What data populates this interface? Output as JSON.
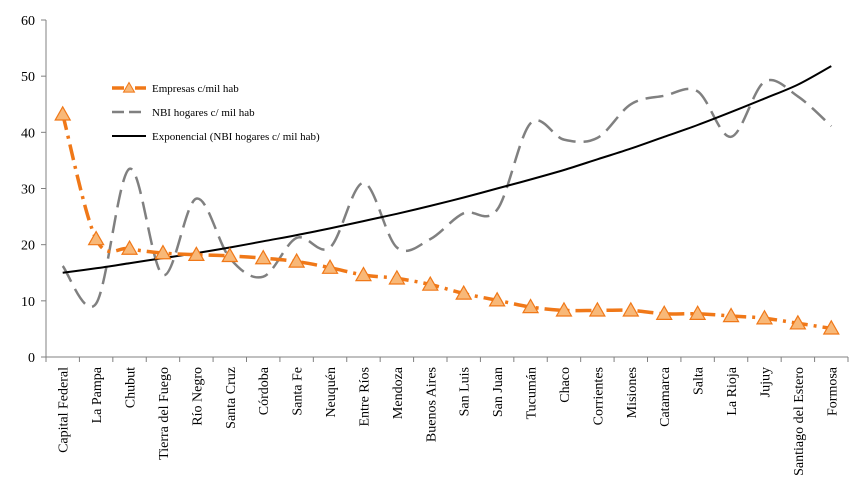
{
  "chart_data": {
    "type": "line",
    "categories": [
      "Capital Federal",
      "La Pampa",
      "Chubut",
      "Tierra del Fuego",
      "Río Negro",
      "Santa Cruz",
      "Córdoba",
      "Santa Fe",
      "Neuquén",
      "Entre Ríos",
      "Mendoza",
      "Buenos Aires",
      "San Luis",
      "San Juan",
      "Tucumán",
      "Chaco",
      "Corrientes",
      "Misiones",
      "Catamarca",
      "Salta",
      "La Rioja",
      "Jujuy",
      "Santiago del Estero",
      "Formosa"
    ],
    "ylim": [
      0,
      60
    ],
    "yticks": [
      0,
      10,
      20,
      30,
      40,
      50,
      60
    ],
    "grid": false,
    "legend_position": "top-left",
    "series": [
      {
        "name": "Empresas c/mil hab",
        "color": "#f07818",
        "marker_fill": "#f8b878",
        "style": "dash-dot",
        "marker": "triangle",
        "values": [
          43.2,
          21.0,
          19.3,
          18.5,
          18.2,
          18.0,
          17.6,
          17.0,
          15.9,
          14.6,
          14.0,
          12.9,
          11.3,
          10.1,
          8.9,
          8.3,
          8.3,
          8.3,
          7.7,
          7.7,
          7.3,
          6.9,
          6.0,
          5.1
        ]
      },
      {
        "name": "NBI hogares  c/ mil hab",
        "color": "#808080",
        "style": "dashed",
        "values": [
          16.2,
          9.5,
          33.5,
          14.6,
          28.2,
          17.6,
          14.3,
          21.2,
          19.5,
          31.0,
          19.5,
          21.0,
          25.6,
          26.2,
          41.6,
          38.7,
          39.0,
          45.0,
          46.5,
          47.3,
          39.2,
          49.0,
          46.4,
          41.1
        ]
      },
      {
        "name": "Exponencial  (NBI hogares  c/ mil hab)",
        "color": "#000000",
        "style": "solid",
        "values": [
          15.0,
          15.8,
          16.7,
          17.6,
          18.5,
          19.5,
          20.6,
          21.7,
          22.9,
          24.2,
          25.5,
          26.9,
          28.4,
          30.0,
          31.6,
          33.3,
          35.2,
          37.1,
          39.2,
          41.3,
          43.6,
          46.0,
          48.5,
          51.8
        ]
      }
    ]
  }
}
